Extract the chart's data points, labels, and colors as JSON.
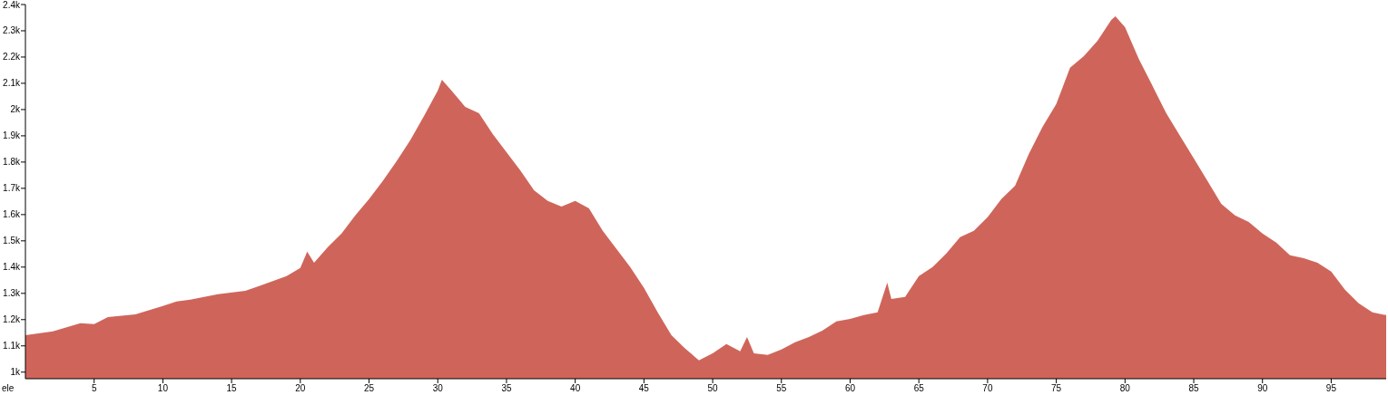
{
  "chart_data": {
    "type": "area",
    "ylabel": "ele",
    "color": "#cf655a",
    "grid": false,
    "x": [
      0,
      2,
      4,
      5,
      6,
      8,
      10,
      11,
      12,
      14,
      16,
      17,
      19,
      20,
      20.5,
      21,
      22,
      23,
      24,
      25,
      26,
      27,
      28,
      29,
      30,
      30.3,
      31,
      32,
      33,
      34,
      35,
      36,
      37,
      38,
      39,
      40,
      41,
      42,
      43,
      44,
      45,
      46,
      47,
      48,
      49,
      50,
      51,
      52,
      52.5,
      53,
      54,
      55,
      56,
      57,
      58,
      59,
      60,
      61,
      62,
      62.7,
      63,
      64,
      65,
      66,
      67,
      68,
      69,
      70,
      71,
      72,
      73,
      74,
      75,
      76,
      77,
      78,
      79,
      79.3,
      80,
      81,
      82,
      83,
      84,
      85,
      86,
      87,
      88,
      89,
      90,
      91,
      92,
      93,
      94,
      95,
      96,
      97,
      98,
      99
    ],
    "values": [
      1141,
      1155,
      1186,
      1183,
      1210,
      1220,
      1252,
      1269,
      1276,
      1297,
      1310,
      1328,
      1366,
      1397,
      1459,
      1417,
      1476,
      1528,
      1597,
      1659,
      1728,
      1803,
      1883,
      1976,
      2072,
      2114,
      2072,
      2010,
      1986,
      1907,
      1838,
      1769,
      1693,
      1652,
      1631,
      1652,
      1624,
      1538,
      1469,
      1400,
      1321,
      1228,
      1141,
      1090,
      1045,
      1072,
      1107,
      1079,
      1134,
      1072,
      1066,
      1086,
      1114,
      1134,
      1159,
      1193,
      1203,
      1217,
      1228,
      1341,
      1279,
      1286,
      1366,
      1400,
      1452,
      1514,
      1538,
      1590,
      1659,
      1710,
      1831,
      1934,
      2021,
      2159,
      2203,
      2262,
      2341,
      2355,
      2314,
      2193,
      2090,
      1986,
      1900,
      1814,
      1728,
      1641,
      1597,
      1572,
      1528,
      1493,
      1445,
      1434,
      1417,
      1383,
      1314,
      1262,
      1228,
      1217
    ],
    "xlim": [
      0,
      99
    ],
    "xticks": [
      5,
      10,
      15,
      20,
      25,
      30,
      35,
      40,
      45,
      50,
      55,
      60,
      65,
      70,
      75,
      80,
      85,
      90,
      95
    ],
    "ylim": [
      975,
      2400
    ],
    "yticks": [
      {
        "value": 1000,
        "label": "1k"
      },
      {
        "value": 1100,
        "label": "1.1k"
      },
      {
        "value": 1200,
        "label": "1.2k"
      },
      {
        "value": 1300,
        "label": "1.3k"
      },
      {
        "value": 1400,
        "label": "1.4k"
      },
      {
        "value": 1500,
        "label": "1.5k"
      },
      {
        "value": 1600,
        "label": "1.6k"
      },
      {
        "value": 1700,
        "label": "1.7k"
      },
      {
        "value": 1800,
        "label": "1.8k"
      },
      {
        "value": 1900,
        "label": "1.9k"
      },
      {
        "value": 2000,
        "label": "2k"
      },
      {
        "value": 2100,
        "label": "2.1k"
      },
      {
        "value": 2200,
        "label": "2.2k"
      },
      {
        "value": 2300,
        "label": "2.3k"
      },
      {
        "value": 2400,
        "label": "2.4k"
      }
    ]
  }
}
